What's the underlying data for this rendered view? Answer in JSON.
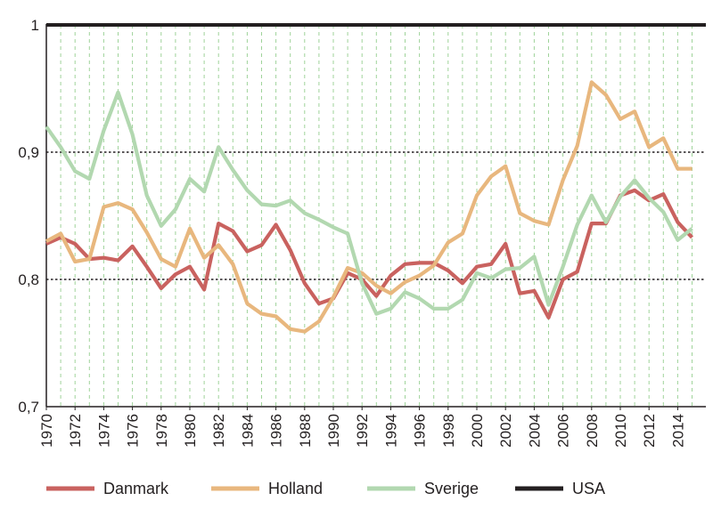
{
  "chart_data": {
    "type": "line",
    "title": "",
    "xlabel": "",
    "ylabel": "",
    "ylim": [
      0.7,
      1.0
    ],
    "xlim": [
      1970,
      2016
    ],
    "yticks": [
      {
        "value": 0.7,
        "label": "0,7"
      },
      {
        "value": 0.8,
        "label": "0,8"
      },
      {
        "value": 0.9,
        "label": "0,9"
      },
      {
        "value": 1.0,
        "label": "1"
      }
    ],
    "xticks": [
      "1970",
      "1972",
      "1974",
      "1976",
      "1978",
      "1980",
      "1982",
      "1984",
      "1986",
      "1988",
      "1990",
      "1992",
      "1994",
      "1996",
      "1998",
      "2000",
      "2002",
      "2004",
      "2006",
      "2008",
      "2010",
      "2012",
      "2014"
    ],
    "grid": {
      "vertical": "dashed-green every year",
      "horizontal": "dotted-black at 0.8 and 0.9"
    },
    "legend_position": "bottom",
    "x": [
      1970,
      1971,
      1972,
      1973,
      1974,
      1975,
      1976,
      1977,
      1978,
      1979,
      1980,
      1981,
      1982,
      1983,
      1984,
      1985,
      1986,
      1987,
      1988,
      1989,
      1990,
      1991,
      1992,
      1993,
      1994,
      1995,
      1996,
      1997,
      1998,
      1999,
      2000,
      2001,
      2002,
      2003,
      2004,
      2005,
      2006,
      2007,
      2008,
      2009,
      2010,
      2011,
      2012,
      2013,
      2014,
      2015
    ],
    "series": [
      {
        "name": "Danmark",
        "color": "#c9625f",
        "values": [
          0.828,
          0.833,
          0.828,
          0.816,
          0.817,
          0.815,
          0.826,
          0.81,
          0.793,
          0.804,
          0.81,
          0.792,
          0.844,
          0.838,
          0.822,
          0.827,
          0.843,
          0.823,
          0.797,
          0.781,
          0.785,
          0.805,
          0.8,
          0.787,
          0.803,
          0.812,
          0.813,
          0.813,
          0.807,
          0.797,
          0.81,
          0.812,
          0.828,
          0.789,
          0.791,
          0.77,
          0.8,
          0.806,
          0.844,
          0.844,
          0.866,
          0.87,
          0.862,
          0.867,
          0.845,
          0.833
        ]
      },
      {
        "name": "Holland",
        "color": "#e8b77e",
        "values": [
          0.83,
          0.836,
          0.814,
          0.816,
          0.857,
          0.86,
          0.855,
          0.837,
          0.816,
          0.81,
          0.84,
          0.817,
          0.827,
          0.812,
          0.781,
          0.773,
          0.771,
          0.761,
          0.759,
          0.767,
          0.786,
          0.809,
          0.805,
          0.795,
          0.789,
          0.798,
          0.803,
          0.811,
          0.829,
          0.836,
          0.866,
          0.881,
          0.889,
          0.852,
          0.846,
          0.843,
          0.878,
          0.905,
          0.955,
          0.945,
          0.926,
          0.932,
          0.904,
          0.911,
          0.887,
          0.887
        ]
      },
      {
        "name": "Sverige",
        "color": "#b2d8b0",
        "values": [
          0.92,
          0.904,
          0.885,
          0.879,
          0.917,
          0.947,
          0.914,
          0.866,
          0.842,
          0.855,
          0.879,
          0.869,
          0.904,
          0.886,
          0.87,
          0.859,
          0.858,
          0.862,
          0.852,
          0.847,
          0.841,
          0.836,
          0.797,
          0.773,
          0.777,
          0.79,
          0.785,
          0.777,
          0.777,
          0.784,
          0.805,
          0.801,
          0.808,
          0.809,
          0.818,
          0.78,
          0.81,
          0.843,
          0.866,
          0.845,
          0.865,
          0.878,
          0.864,
          0.853,
          0.831,
          0.84
        ]
      },
      {
        "name": "USA",
        "color": "#231f20",
        "values": [
          1,
          1,
          1,
          1,
          1,
          1,
          1,
          1,
          1,
          1,
          1,
          1,
          1,
          1,
          1,
          1,
          1,
          1,
          1,
          1,
          1,
          1,
          1,
          1,
          1,
          1,
          1,
          1,
          1,
          1,
          1,
          1,
          1,
          1,
          1,
          1,
          1,
          1,
          1,
          1,
          1,
          1,
          1,
          1,
          1,
          1
        ]
      }
    ]
  }
}
